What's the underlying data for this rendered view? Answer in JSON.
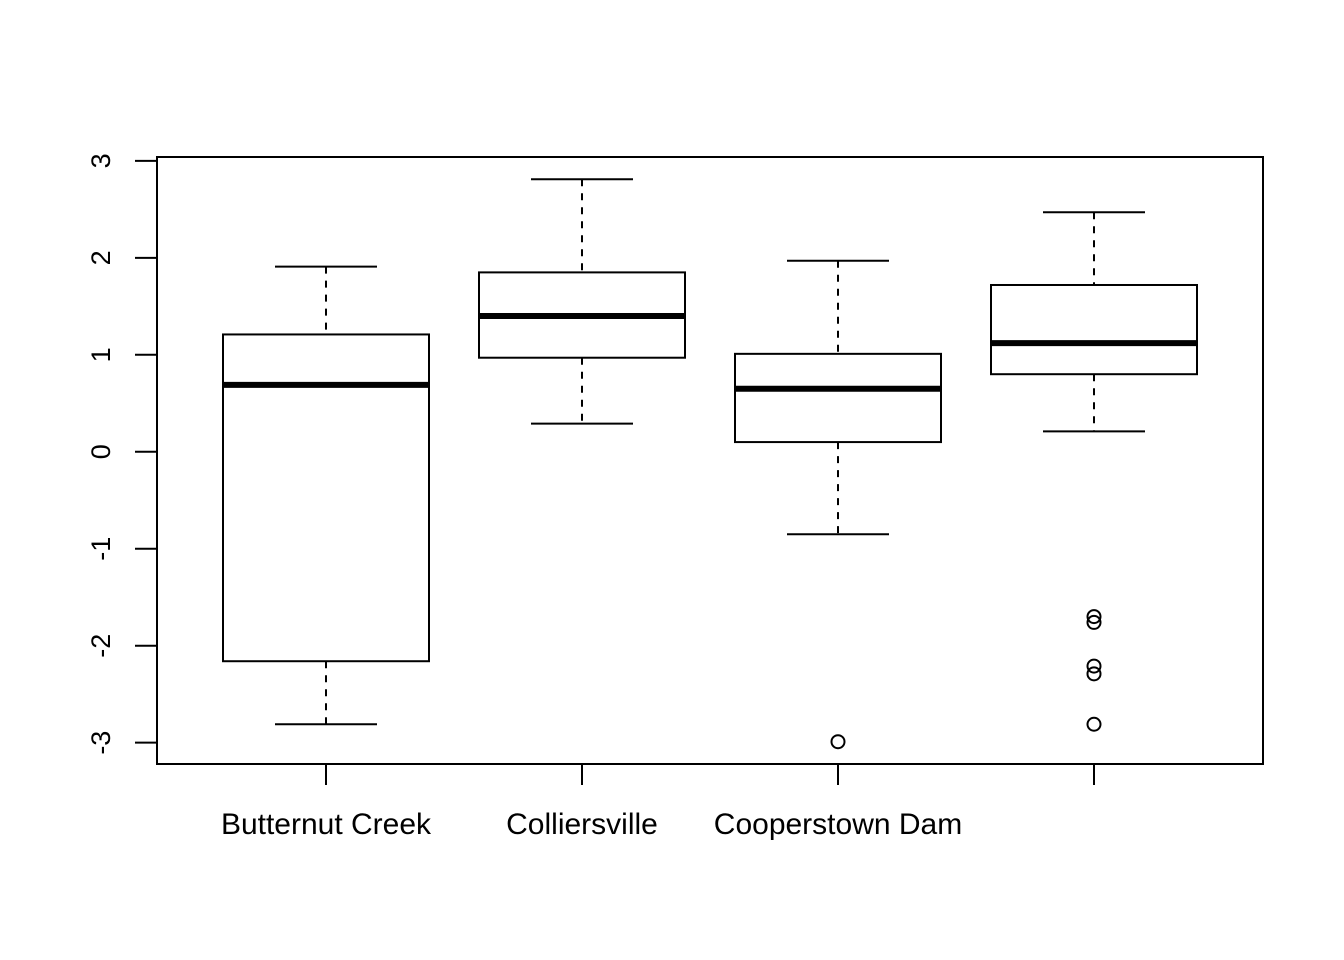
{
  "chart_data": {
    "type": "boxplot",
    "title": "",
    "xlabel": "",
    "ylabel": "",
    "ylim": [
      -3.22,
      3.04
    ],
    "yticks": [
      -3,
      -2,
      -1,
      0,
      1,
      2,
      3
    ],
    "ytick_labels": [
      "-3",
      "-2",
      "-1",
      "0",
      "1",
      "2",
      "3"
    ],
    "grid": false,
    "categories": [
      "Butternut Creek",
      "Colliersville",
      "Cooperstown Dam",
      ""
    ],
    "boxes": [
      {
        "category": "Butternut Creek",
        "whisker_low": -2.81,
        "q1": -2.16,
        "median": 0.69,
        "q3": 1.21,
        "whisker_high": 1.91,
        "outliers": []
      },
      {
        "category": "Colliersville",
        "whisker_low": 0.29,
        "q1": 0.97,
        "median": 1.4,
        "q3": 1.85,
        "whisker_high": 2.81,
        "outliers": []
      },
      {
        "category": "Cooperstown Dam",
        "whisker_low": -0.85,
        "q1": 0.1,
        "median": 0.65,
        "q3": 1.01,
        "whisker_high": 1.97,
        "outliers": [
          -2.99
        ]
      },
      {
        "category": "",
        "whisker_low": 0.21,
        "q1": 0.8,
        "median": 1.12,
        "q3": 1.72,
        "whisker_high": 2.47,
        "outliers": [
          -1.7,
          -1.76,
          -2.21,
          -2.29,
          -2.81
        ]
      }
    ]
  }
}
